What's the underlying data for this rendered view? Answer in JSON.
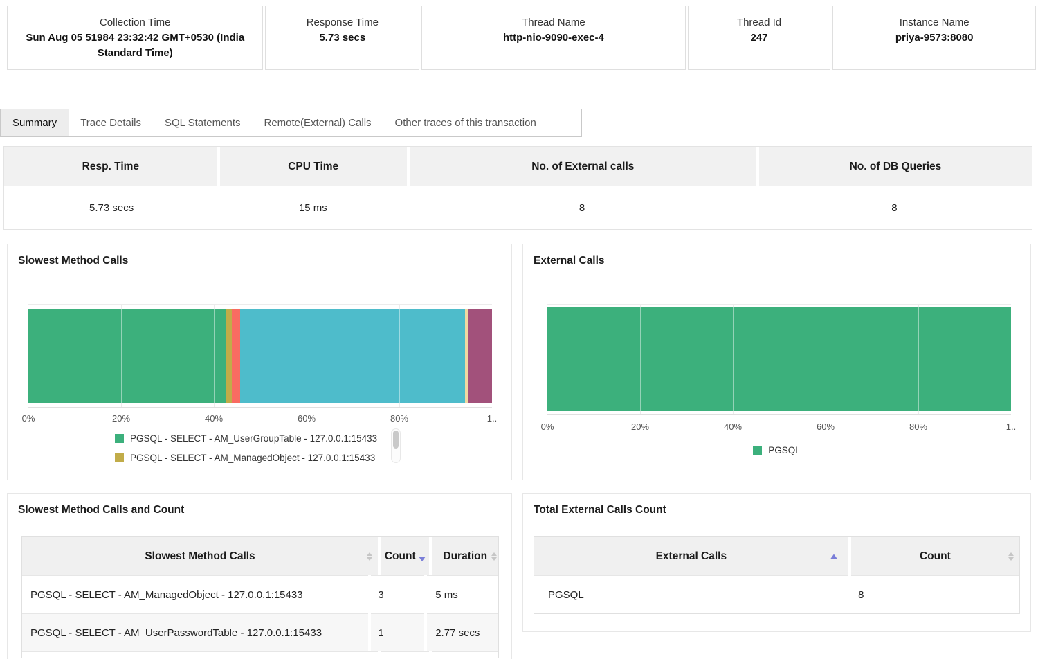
{
  "info_cards": [
    {
      "label": "Collection Time",
      "value": "Sun Aug 05 51984 23:32:42 GMT+0530 (India Standard Time)"
    },
    {
      "label": "Response Time",
      "value": "5.73 secs"
    },
    {
      "label": "Thread Name",
      "value": "http-nio-9090-exec-4"
    },
    {
      "label": "Thread Id",
      "value": "247"
    },
    {
      "label": "Instance Name",
      "value": "priya-9573:8080"
    }
  ],
  "tabs": [
    {
      "label": "Summary",
      "active": true
    },
    {
      "label": "Trace Details",
      "active": false
    },
    {
      "label": "SQL Statements",
      "active": false
    },
    {
      "label": "Remote(External) Calls",
      "active": false
    },
    {
      "label": "Other traces of this transaction",
      "active": false
    }
  ],
  "summary_table": {
    "columns": [
      "Resp. Time",
      "CPU Time",
      "No. of External calls",
      "No. of DB Queries"
    ],
    "values": [
      "5.73 secs",
      "15 ms",
      "8",
      "8"
    ]
  },
  "chart_data": [
    {
      "type": "bar",
      "orientation": "horizontal-stacked",
      "title": "Slowest Method Calls",
      "x_ticks": [
        "0%",
        "20%",
        "40%",
        "60%",
        "80%",
        "1.."
      ],
      "x_range": [
        0,
        100
      ],
      "grid": true,
      "segments": [
        {
          "label": "PGSQL - SELECT - AM_UserGroupTable - 127.0.0.1:15433",
          "percent": 42.7,
          "color": "#3cb07c"
        },
        {
          "label": "PGSQL - SELECT - AM_ManagedObject - 127.0.0.1:15433",
          "percent": 1.2,
          "color": "#c1ac49"
        },
        {
          "label": "",
          "percent": 1.8,
          "color": "#f96b62"
        },
        {
          "label": "",
          "percent": 48.5,
          "color": "#4ebccb"
        },
        {
          "label": "",
          "percent": 0.6,
          "color": "#f0d9a1"
        },
        {
          "label": "",
          "percent": 5.2,
          "color": "#a2517b"
        }
      ],
      "legend_position": "bottom-left-scrollable",
      "legend": [
        {
          "label": "PGSQL - SELECT - AM_UserGroupTable - 127.0.0.1:15433",
          "color": "#3cb07c"
        },
        {
          "label": "PGSQL - SELECT - AM_ManagedObject - 127.0.0.1:15433",
          "color": "#c1ac49"
        }
      ]
    },
    {
      "type": "bar",
      "orientation": "horizontal-stacked",
      "title": "External Calls",
      "x_ticks": [
        "0%",
        "20%",
        "40%",
        "60%",
        "80%",
        "1.."
      ],
      "x_range": [
        0,
        100
      ],
      "grid": true,
      "segments": [
        {
          "label": "PGSQL",
          "percent": 100,
          "color": "#3cb07c"
        }
      ],
      "legend_position": "bottom-center",
      "legend": [
        {
          "label": "PGSQL",
          "color": "#3cb07c"
        }
      ]
    }
  ],
  "tables": [
    {
      "title": "Slowest Method Calls and Count",
      "columns": [
        {
          "label": "Slowest Method Calls",
          "sort": "none"
        },
        {
          "label": "Count",
          "sort": "desc"
        },
        {
          "label": "Duration",
          "sort": "none"
        }
      ],
      "rows": [
        [
          "PGSQL - SELECT - AM_ManagedObject - 127.0.0.1:15433",
          "3",
          "5 ms"
        ],
        [
          "PGSQL - SELECT - AM_UserPasswordTable - 127.0.0.1:15433",
          "1",
          "2.77 secs"
        ]
      ]
    },
    {
      "title": "Total External Calls Count",
      "columns": [
        {
          "label": "External Calls",
          "sort": "asc"
        },
        {
          "label": "Count",
          "sort": "none"
        }
      ],
      "rows": [
        [
          "PGSQL",
          "8"
        ]
      ]
    }
  ],
  "colors": {
    "accent_sort": "#7a7ed8",
    "header_bg": "#f0f0f0",
    "green": "#3cb07c",
    "olive": "#c1ac49",
    "salmon": "#f96b62",
    "teal": "#4ebccb",
    "cream": "#f0d9a1",
    "purple": "#a2517b"
  }
}
